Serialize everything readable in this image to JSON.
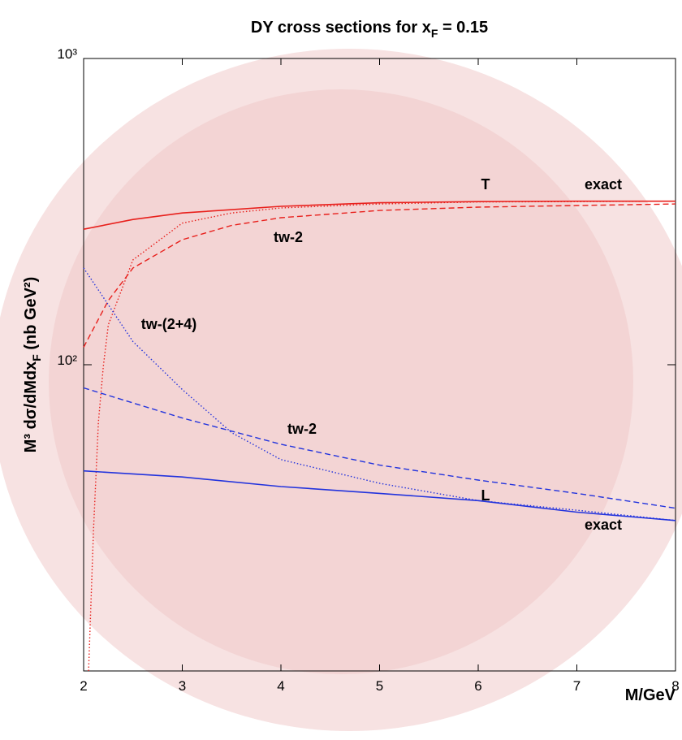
{
  "chart_data": {
    "type": "line",
    "title": {
      "main": "DY cross sections  for x",
      "sub": "F",
      "rest": " = 0.15"
    },
    "xlabel": "M/GeV",
    "ylabel": {
      "main": "M³ dσ/dMdx",
      "sub": "F",
      "rest": " (nb GeV²)"
    },
    "xlim": [
      2,
      8
    ],
    "ylim": [
      10,
      1000
    ],
    "log_y": true,
    "xticks": [
      2,
      3,
      4,
      5,
      6,
      7,
      8
    ],
    "yticks": [
      {
        "value": 100,
        "label": "10²"
      },
      {
        "value": 1000,
        "label": "10³"
      }
    ],
    "series": [
      {
        "color": "#e8201c",
        "style": "solid",
        "x": [
          2,
          2.5,
          3,
          4,
          5,
          6,
          7,
          8
        ],
        "values": [
          277,
          298,
          313,
          329,
          338,
          341,
          342,
          342
        ]
      },
      {
        "color": "#e8201c",
        "style": "dashed",
        "x": [
          2,
          2.25,
          2.5,
          3,
          3.5,
          4,
          5,
          6,
          7,
          8
        ],
        "values": [
          114,
          162,
          207,
          256,
          285,
          302,
          319,
          327,
          331,
          335
        ]
      },
      {
        "color": "#e8201c",
        "style": "dotted",
        "x": [
          2.05,
          2.1,
          2.15,
          2.2,
          2.25,
          2.5,
          3,
          3.5,
          4,
          5,
          6,
          8
        ],
        "values": [
          10,
          29,
          65,
          99,
          135,
          220,
          290,
          313,
          325,
          335,
          340,
          342
        ]
      },
      {
        "color": "#2233dd",
        "style": "dotted",
        "x": [
          2,
          2.5,
          3,
          3.5,
          4,
          5,
          6,
          7,
          8
        ],
        "values": [
          207,
          119,
          83,
          60,
          49,
          41,
          36,
          33.5,
          31
        ]
      },
      {
        "color": "#2233dd",
        "style": "dashed",
        "x": [
          2,
          3,
          4,
          5,
          6,
          7,
          8
        ],
        "values": [
          84,
          67,
          55,
          47,
          42,
          38,
          34
        ]
      },
      {
        "color": "#2233dd",
        "style": "solid",
        "x": [
          2,
          3,
          4,
          5,
          6,
          7,
          8
        ],
        "values": [
          45,
          43,
          40,
          38,
          36,
          33,
          31
        ]
      }
    ],
    "annotations": [
      "T",
      "exact",
      "tw-2",
      "tw-(2+4)",
      "tw-2",
      "L",
      "exact"
    ]
  }
}
